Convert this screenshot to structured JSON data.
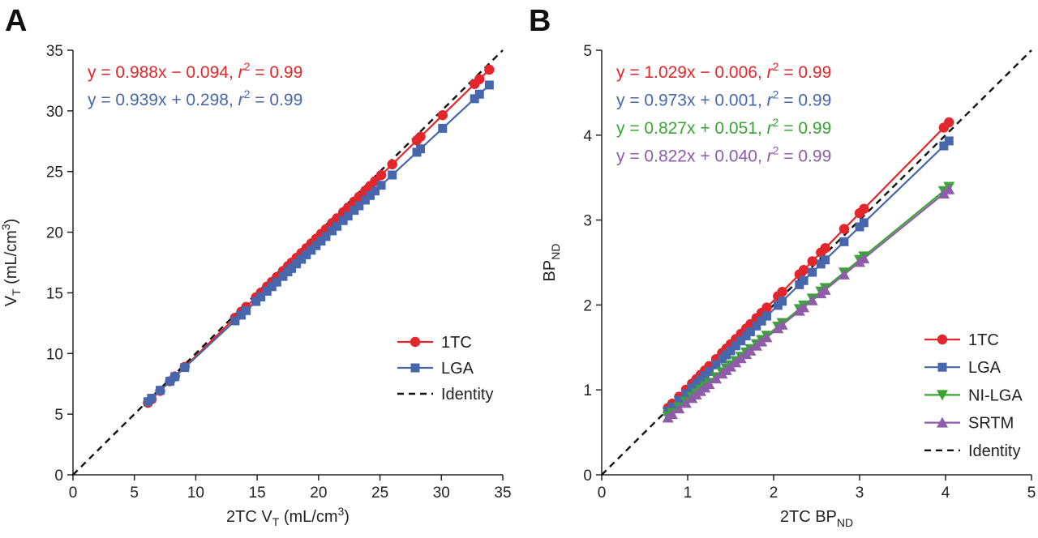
{
  "colors": {
    "red": "#e3262b",
    "blue": "#4866ab",
    "green": "#3aa436",
    "purple": "#8e5ca9",
    "black": "#111111"
  },
  "chart_data": [
    {
      "type": "scatter",
      "panel_label": "A",
      "xlabel": "2TC V",
      "xlabel_sub": "T",
      "xlabel_unit": " (mL/cm",
      "ylabel": "V",
      "ylabel_sub": "T",
      "ylabel_unit": " (mL/cm",
      "unit_sup": "3",
      "unit_close": ")",
      "xlim": [
        0,
        35
      ],
      "ylim": [
        0,
        35
      ],
      "xticks": [
        0,
        5,
        10,
        15,
        20,
        25,
        30,
        35
      ],
      "yticks": [
        0,
        5,
        10,
        15,
        20,
        25,
        30,
        35
      ],
      "legend_position": "bottom-right",
      "series": [
        {
          "name": "1TC",
          "color": "red",
          "marker": "circle",
          "fit": {
            "slope": 0.988,
            "intercept": -0.094
          },
          "equation": {
            "prefix": "y = 0.988x − 0.094, ",
            "r": "r",
            "sup": "2",
            "suffix": " = 0.99"
          }
        },
        {
          "name": "LGA",
          "color": "blue",
          "marker": "square",
          "fit": {
            "slope": 0.939,
            "intercept": 0.298
          },
          "equation": {
            "prefix": "y = 0.939x + 0.298, ",
            "r": "r",
            "sup": "2",
            "suffix": " = 0.99"
          }
        },
        {
          "name": "Identity",
          "color": "black",
          "marker": "dashed",
          "fit": {
            "slope": 1,
            "intercept": 0
          }
        }
      ],
      "x": [
        6.1,
        6.4,
        7.1,
        7.9,
        8.3,
        9.1,
        13.2,
        13.7,
        14.1,
        14.9,
        15.3,
        15.8,
        16.2,
        16.6,
        17.1,
        17.5,
        17.8,
        18.2,
        18.6,
        19.0,
        19.4,
        19.8,
        20.2,
        20.6,
        21.1,
        21.5,
        22.0,
        22.4,
        22.9,
        23.3,
        23.8,
        24.2,
        24.6,
        25.1,
        26.0,
        28.0,
        28.3,
        30.1,
        32.7,
        33.1,
        33.9
      ]
    },
    {
      "type": "scatter",
      "panel_label": "B",
      "xlabel": "2TC BP",
      "xlabel_sub": "ND",
      "ylabel": "BP",
      "ylabel_sub": "ND",
      "xlim": [
        0,
        5
      ],
      "ylim": [
        0,
        5
      ],
      "xticks": [
        0,
        1,
        2,
        3,
        4,
        5
      ],
      "yticks": [
        0,
        1,
        2,
        3,
        4,
        5
      ],
      "legend_position": "bottom-right",
      "series": [
        {
          "name": "1TC",
          "color": "red",
          "marker": "circle",
          "fit": {
            "slope": 1.029,
            "intercept": -0.006
          },
          "equation": {
            "prefix": "y = 1.029x − 0.006, ",
            "r": "r",
            "sup": "2",
            "suffix": " = 0.99"
          }
        },
        {
          "name": "LGA",
          "color": "blue",
          "marker": "square",
          "fit": {
            "slope": 0.973,
            "intercept": 0.001
          },
          "equation": {
            "prefix": "y = 0.973x + 0.001, ",
            "r": "r",
            "sup": "2",
            "suffix": " = 0.99"
          }
        },
        {
          "name": "NI-LGA",
          "color": "green",
          "marker": "triangle-down",
          "fit": {
            "slope": 0.827,
            "intercept": 0.051
          },
          "equation": {
            "prefix": "y = 0.827x + 0.051, ",
            "r": "r",
            "sup": "2",
            "suffix": " = 0.99"
          }
        },
        {
          "name": "SRTM",
          "color": "purple",
          "marker": "triangle-up",
          "fit": {
            "slope": 0.822,
            "intercept": 0.04
          },
          "equation": {
            "prefix": "y = 0.822x + 0.040, ",
            "r": "r",
            "sup": "2",
            "suffix": " = 0.99"
          }
        },
        {
          "name": "Identity",
          "color": "black",
          "marker": "dashed",
          "fit": {
            "slope": 1,
            "intercept": 0
          }
        }
      ],
      "x": [
        0.77,
        0.82,
        0.9,
        0.98,
        1.05,
        1.1,
        1.15,
        1.2,
        1.25,
        1.33,
        1.4,
        1.45,
        1.5,
        1.56,
        1.62,
        1.68,
        1.73,
        1.8,
        1.86,
        1.92,
        2.05,
        2.1,
        2.3,
        2.35,
        2.45,
        2.55,
        2.6,
        2.82,
        3.0,
        3.05,
        3.98,
        4.04
      ]
    }
  ]
}
